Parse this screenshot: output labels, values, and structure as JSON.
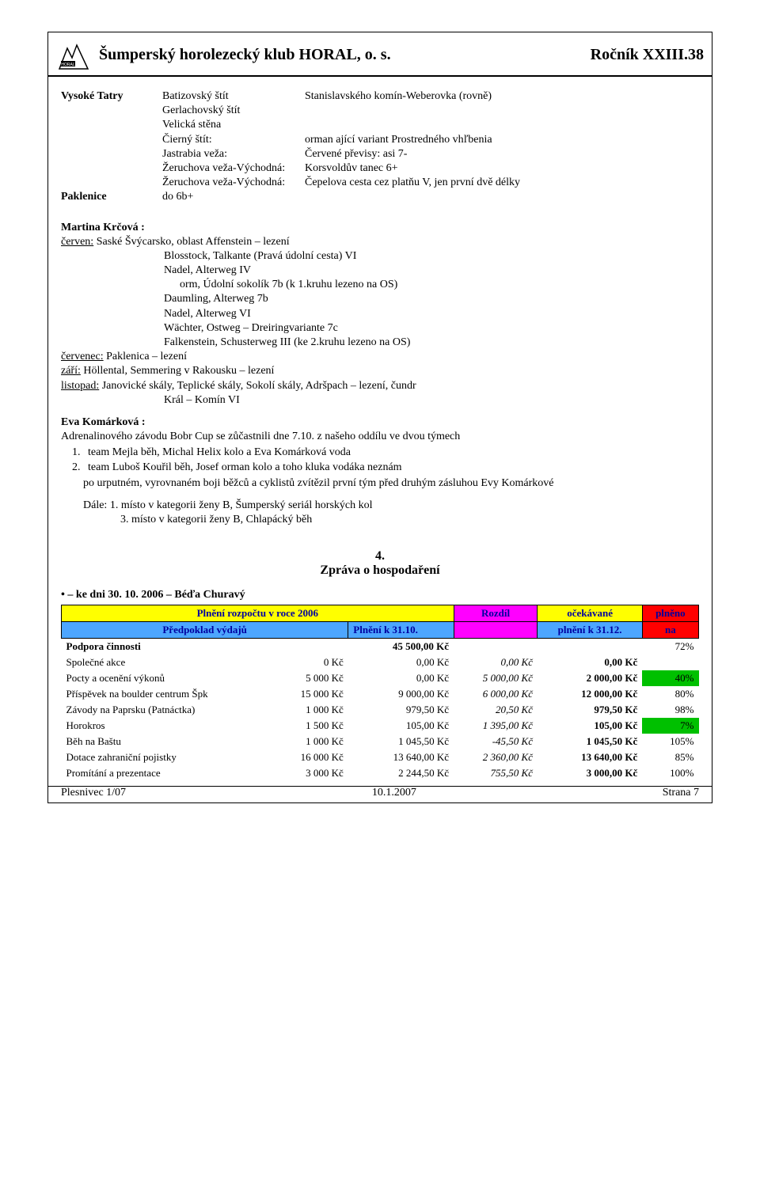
{
  "header": {
    "title": "Šumperský horolezecký klub HORAL, o. s.",
    "right": "Ročník XXIII.38"
  },
  "tatry": {
    "label": "Vysoké Tatry",
    "rows": [
      {
        "m": "Batizovský štít",
        "r": "Stanislavského komín-Weberovka (rovně)"
      },
      {
        "m": "Gerlachovský štít",
        "r": ""
      },
      {
        "m": "Velická stěna",
        "r": ""
      },
      {
        "m": "Čierný štít:",
        "r": "   orman     ající variant Prostredného vhľbenia"
      },
      {
        "m": "Jastrabia veža:",
        "r": "Červené převisy: asi 7-"
      },
      {
        "m": "Žeruchova veža-Východná:",
        "r": "Korsvoldův tanec 6+"
      },
      {
        "m": "Žeruchova veža-Východná:",
        "r": "Čepelova cesta cez platňu V, jen první dvě délky"
      }
    ]
  },
  "paklenice": {
    "label": "Paklenice",
    "val": "do 6b+"
  },
  "martina": {
    "name": "Martina Krčová :",
    "june_prefix": "červen:",
    "june_txt": " Saské Švýcarsko, oblast Affenstein – lezení",
    "items": [
      "Blosstock, Talkante (Pravá údolní cesta) VI",
      "Nadel, Alterweg IV",
      "   orm, Údolní sokolík 7b (k 1.kruhu lezeno na OS)",
      "Daumling, Alterweg 7b",
      "Nadel, Alterweg VI",
      "Wächter, Ostweg – Dreiringvariante 7c",
      "Falkenstein, Schusterweg III (ke 2.kruhu lezeno na OS)"
    ],
    "july_prefix": "červenec:",
    "july_txt": " Paklenica – lezení",
    "sept_prefix": "září:",
    "sept_txt": " Höllental, Semmering v Rakousku – lezení",
    "nov_prefix": "listopad:",
    "nov_txt": " Janovické skály, Teplické skály, Sokolí skály, Adršpach – lezení, čundr",
    "nov_item": "Král – Komín VI"
  },
  "eva": {
    "name": "Eva Komárková :",
    "line1": "Adrenalinového závodu Bobr Cup se zůčastnili dne 7.10. z našeho oddílu ve dvou týmech",
    "ol": [
      "team Mejla běh, Michal Helix kolo a Eva Komárková voda",
      "team Luboš Kouřil běh, Josef    orman kolo a toho kluka vodáka neznám"
    ],
    "line2": "po urputném, vyrovnaném boji běžců a cyklistů zvítězil první tým před druhým zásluhou Evy Komárkové",
    "dále": "Dále:  1. místo v kategorii ženy B, Šumperský seriál horských kol",
    "dále2": "3. místo v kategorii ženy B, Chlapácký běh"
  },
  "section": {
    "num": "4.",
    "title": "Zpráva o hospodaření"
  },
  "budget": {
    "bullet": "•  – ke dni 30. 10. 2006 – Béďa Churavý",
    "h1": "Plnění rozpočtu v roce 2006",
    "h2": "Rozdíl",
    "h3": "očekávané",
    "h4": "plněno",
    "s1": "Předpoklad výdajů",
    "s2": "Plnění k 31.10.",
    "s3": "plnění k 31.12.",
    "s4": "na",
    "rows": [
      {
        "name": "Podpora činnosti",
        "a": "",
        "a2": "45 500,00 Kč",
        "b": "",
        "c": "",
        "d": "",
        "e": "72%",
        "hi": false,
        "bold": true
      },
      {
        "name": "Společné akce",
        "a": "0 Kč",
        "b": "0,00 Kč",
        "c": "0,00 Kč",
        "d": "0,00 Kč",
        "e": "",
        "hi": false
      },
      {
        "name": "Pocty a ocenění výkonů",
        "a": "5 000 Kč",
        "b": "0,00 Kč",
        "c": "5 000,00 Kč",
        "d": "2 000,00 Kč",
        "e": "40%",
        "hi": true
      },
      {
        "name": "Příspěvek na boulder centrum Špk",
        "a": "15 000 Kč",
        "b": "9 000,00 Kč",
        "c": "6 000,00 Kč",
        "d": "12 000,00 Kč",
        "e": "80%",
        "hi": false
      },
      {
        "name": "Závody na Paprsku (Patnáctka)",
        "a": "1 000 Kč",
        "b": "979,50 Kč",
        "c": "20,50 Kč",
        "d": "979,50 Kč",
        "e": "98%",
        "hi": false
      },
      {
        "name": "Horokros",
        "a": "1 500 Kč",
        "b": "105,00 Kč",
        "c": "1 395,00 Kč",
        "d": "105,00 Kč",
        "e": "7%",
        "hi": true
      },
      {
        "name": "Běh na Baštu",
        "a": "1 000 Kč",
        "b": "1 045,50 Kč",
        "c": "-45,50 Kč",
        "d": "1 045,50 Kč",
        "e": "105%",
        "hi": false
      },
      {
        "name": "Dotace zahraniční pojistky",
        "a": "16 000 Kč",
        "b": "13 640,00 Kč",
        "c": "2 360,00 Kč",
        "d": "13 640,00 Kč",
        "e": "85%",
        "hi": false
      },
      {
        "name": "Promítání a prezentace",
        "a": "3 000 Kč",
        "b": "2 244,50 Kč",
        "c": "755,50 Kč",
        "d": "3 000,00 Kč",
        "e": "100%",
        "hi": false
      }
    ]
  },
  "footer": {
    "l": "Plesnivec 1/07",
    "c": "10.1.2007",
    "r": "Strana 7"
  }
}
